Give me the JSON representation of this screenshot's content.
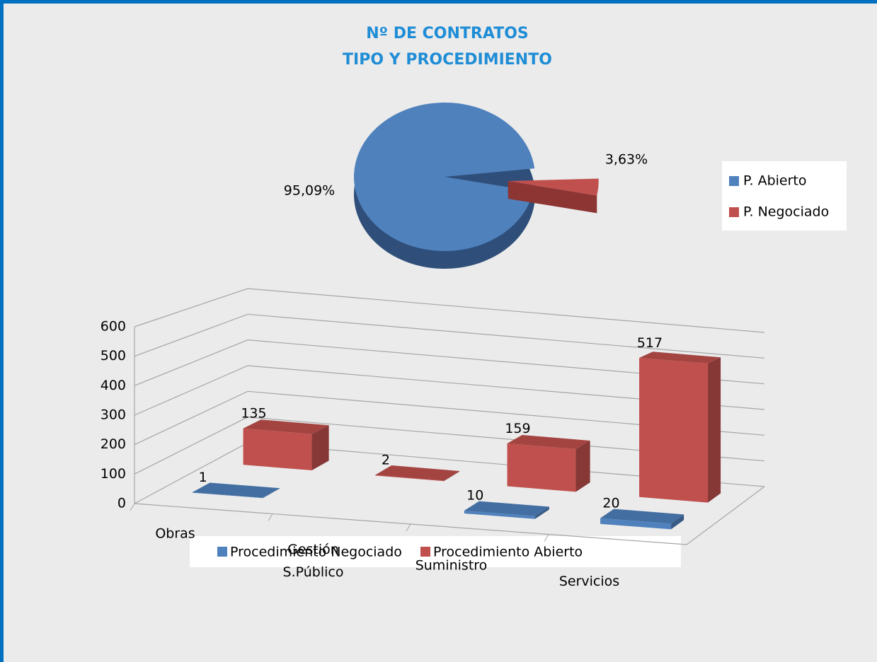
{
  "chart_data": [
    {
      "type": "pie",
      "title": "Nº DE CONTRATOS",
      "subtitle": "TIPO Y PROCEDIMIENTO",
      "categories": [
        "P. Abierto",
        "P. Negociado"
      ],
      "values": [
        95.09,
        3.63
      ],
      "value_labels": [
        "95,09%",
        "3,63%"
      ],
      "colors": [
        "#4f81bd",
        "#c0504d"
      ],
      "legend": "right"
    },
    {
      "type": "bar",
      "categories": [
        "Obras",
        "Gestión S.Público",
        "Suministro",
        "Servicios"
      ],
      "series": [
        {
          "name": "Procedimiento Negociado",
          "color": "#4f81bd",
          "values": [
            1,
            null,
            10,
            20
          ]
        },
        {
          "name": "Procedimiento Abierto",
          "color": "#c0504d",
          "values": [
            135,
            2,
            159,
            517
          ]
        }
      ],
      "ylim": [
        0,
        600
      ],
      "yticks": [
        0,
        100,
        200,
        300,
        400,
        500,
        600
      ],
      "grid": true,
      "legend": "bottom"
    }
  ]
}
